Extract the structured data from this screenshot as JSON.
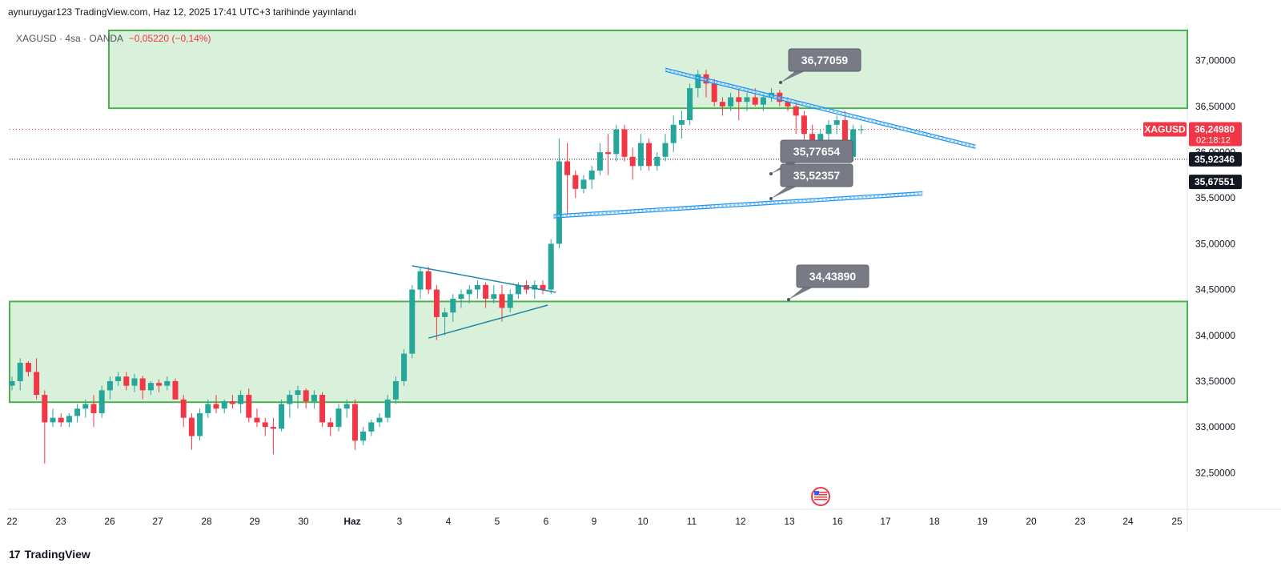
{
  "header": {
    "publish_line": "aynuruygar123 TradingView.com, Haz 12, 2025 17:41 UTC+3 tarihinde yayınlandı"
  },
  "symbol": {
    "name": "XAGUSD · 4sa · OANDA",
    "change": "−0,05220 (−0,14%)"
  },
  "footer": {
    "brand": "TradingView"
  },
  "colors": {
    "up": "#26a69a",
    "down": "#f23645",
    "zone_fill": "#d9f0da",
    "zone_line": "#4caf50",
    "trendline": "#2196f3",
    "callout_bg": "#787b86",
    "grid": "#ffffff"
  },
  "chart_data": {
    "type": "candlestick",
    "symbol": "XAGUSD",
    "timeframe": "4sa",
    "ylim": [
      32.1,
      37.4
    ],
    "y_ticks": [
      "37,00000",
      "36,50000",
      "36,00000",
      "35,50000",
      "35,00000",
      "34,50000",
      "34,00000",
      "33,50000",
      "33,00000",
      "32,50000"
    ],
    "y_tick_values": [
      37.0,
      36.5,
      36.0,
      35.5,
      35.0,
      34.5,
      34.0,
      33.5,
      33.0,
      32.5
    ],
    "x_ticks": [
      "22",
      "23",
      "26",
      "27",
      "28",
      "29",
      "30",
      "Haz",
      "3",
      "4",
      "5",
      "6",
      "9",
      "10",
      "11",
      "12",
      "13",
      "16",
      "17",
      "18",
      "19",
      "20",
      "23",
      "24",
      "25"
    ],
    "price_labels": [
      {
        "text": "36,24980",
        "value": 36.2498,
        "color": "#f23645",
        "sub": "02:18:12"
      },
      {
        "text": "35,92346",
        "value": 35.92346,
        "color": "#131722"
      },
      {
        "text": "35,67551",
        "value": 35.67551,
        "color": "#131722"
      }
    ],
    "symbol_tag": "XAGUSD",
    "zones": [
      {
        "from": 36.48,
        "to": 37.33
      },
      {
        "from": 33.27,
        "to": 34.37
      }
    ],
    "callouts": [
      "36,77059",
      "35,77654",
      "35,52357",
      "34,43890"
    ],
    "callout_values": [
      36.77059,
      35.77654,
      35.52357,
      34.4389
    ],
    "candles": [
      [
        33.45,
        33.55,
        33.4,
        33.5
      ],
      [
        33.5,
        33.75,
        33.4,
        33.7
      ],
      [
        33.7,
        33.72,
        33.55,
        33.6
      ],
      [
        33.6,
        33.75,
        33.3,
        33.35
      ],
      [
        33.35,
        33.4,
        32.6,
        33.05
      ],
      [
        33.05,
        33.2,
        33.0,
        33.1
      ],
      [
        33.1,
        33.15,
        33.0,
        33.05
      ],
      [
        33.05,
        33.15,
        33.0,
        33.12
      ],
      [
        33.12,
        33.25,
        33.05,
        33.2
      ],
      [
        33.2,
        33.3,
        33.1,
        33.25
      ],
      [
        33.25,
        33.35,
        33.0,
        33.15
      ],
      [
        33.15,
        33.45,
        33.1,
        33.4
      ],
      [
        33.4,
        33.55,
        33.3,
        33.5
      ],
      [
        33.5,
        33.6,
        33.45,
        33.55
      ],
      [
        33.55,
        33.6,
        33.4,
        33.45
      ],
      [
        33.45,
        33.58,
        33.38,
        33.53
      ],
      [
        33.53,
        33.56,
        33.3,
        33.4
      ],
      [
        33.4,
        33.5,
        33.35,
        33.48
      ],
      [
        33.48,
        33.52,
        33.38,
        33.45
      ],
      [
        33.45,
        33.55,
        33.4,
        33.5
      ],
      [
        33.5,
        33.53,
        33.3,
        33.3
      ],
      [
        33.3,
        33.35,
        33.0,
        33.1
      ],
      [
        33.1,
        33.15,
        32.75,
        32.9
      ],
      [
        32.9,
        33.2,
        32.85,
        33.15
      ],
      [
        33.15,
        33.3,
        33.1,
        33.25
      ],
      [
        33.25,
        33.35,
        33.15,
        33.2
      ],
      [
        33.2,
        33.3,
        33.15,
        33.28
      ],
      [
        33.28,
        33.35,
        33.2,
        33.25
      ],
      [
        33.25,
        33.4,
        33.15,
        33.35
      ],
      [
        33.35,
        33.42,
        33.05,
        33.1
      ],
      [
        33.1,
        33.2,
        33.0,
        33.05
      ],
      [
        33.05,
        33.1,
        32.9,
        33.0
      ],
      [
        33.0,
        33.1,
        32.7,
        32.98
      ],
      [
        32.98,
        33.3,
        32.95,
        33.25
      ],
      [
        33.25,
        33.4,
        33.1,
        33.35
      ],
      [
        33.35,
        33.45,
        33.2,
        33.4
      ],
      [
        33.4,
        33.42,
        33.2,
        33.28
      ],
      [
        33.28,
        33.4,
        33.2,
        33.35
      ],
      [
        33.35,
        33.38,
        33.0,
        33.05
      ],
      [
        33.05,
        33.1,
        32.9,
        33.0
      ],
      [
        33.0,
        33.25,
        32.95,
        33.2
      ],
      [
        33.2,
        33.3,
        33.1,
        33.25
      ],
      [
        33.25,
        33.3,
        32.75,
        32.85
      ],
      [
        32.85,
        33.0,
        32.8,
        32.95
      ],
      [
        32.95,
        33.08,
        32.9,
        33.05
      ],
      [
        33.05,
        33.15,
        33.0,
        33.1
      ],
      [
        33.1,
        33.35,
        33.05,
        33.3
      ],
      [
        33.3,
        33.55,
        33.25,
        33.5
      ],
      [
        33.5,
        33.85,
        33.45,
        33.8
      ],
      [
        33.8,
        34.55,
        33.75,
        34.5
      ],
      [
        34.5,
        34.75,
        34.4,
        34.7
      ],
      [
        34.7,
        34.75,
        34.45,
        34.5
      ],
      [
        34.5,
        34.55,
        33.95,
        34.2
      ],
      [
        34.2,
        34.3,
        34.0,
        34.25
      ],
      [
        34.25,
        34.45,
        34.15,
        34.4
      ],
      [
        34.4,
        34.5,
        34.3,
        34.45
      ],
      [
        34.45,
        34.55,
        34.35,
        34.5
      ],
      [
        34.5,
        34.6,
        34.4,
        34.55
      ],
      [
        34.55,
        34.58,
        34.3,
        34.4
      ],
      [
        34.4,
        34.55,
        34.35,
        34.45
      ],
      [
        34.45,
        34.55,
        34.15,
        34.3
      ],
      [
        34.3,
        34.5,
        34.25,
        34.45
      ],
      [
        34.45,
        34.58,
        34.4,
        34.55
      ],
      [
        34.55,
        34.6,
        34.45,
        34.5
      ],
      [
        34.5,
        34.6,
        34.4,
        34.55
      ],
      [
        34.55,
        34.6,
        34.45,
        34.5
      ],
      [
        34.5,
        35.05,
        34.45,
        35.0
      ],
      [
        35.0,
        36.15,
        34.95,
        35.9
      ],
      [
        35.9,
        36.1,
        35.3,
        35.75
      ],
      [
        35.75,
        35.8,
        35.5,
        35.6
      ],
      [
        35.6,
        35.75,
        35.55,
        35.7
      ],
      [
        35.7,
        35.85,
        35.6,
        35.8
      ],
      [
        35.8,
        36.1,
        35.75,
        36.0
      ],
      [
        36.0,
        36.2,
        35.75,
        35.98
      ],
      [
        35.98,
        36.3,
        35.9,
        36.25
      ],
      [
        36.25,
        36.3,
        35.9,
        35.95
      ],
      [
        35.95,
        36.05,
        35.7,
        35.85
      ],
      [
        35.85,
        36.2,
        35.8,
        36.1
      ],
      [
        36.1,
        36.15,
        35.8,
        35.85
      ],
      [
        35.85,
        36.0,
        35.8,
        35.95
      ],
      [
        35.95,
        36.2,
        35.9,
        36.1
      ],
      [
        36.1,
        36.4,
        36.0,
        36.3
      ],
      [
        36.3,
        36.45,
        36.15,
        36.35
      ],
      [
        36.35,
        36.75,
        36.3,
        36.7
      ],
      [
        36.7,
        36.9,
        36.6,
        36.85
      ],
      [
        36.85,
        36.9,
        36.6,
        36.75
      ],
      [
        36.75,
        36.8,
        36.5,
        36.55
      ],
      [
        36.55,
        36.6,
        36.4,
        36.5
      ],
      [
        36.5,
        36.65,
        36.45,
        36.6
      ],
      [
        36.6,
        36.7,
        36.35,
        36.55
      ],
      [
        36.55,
        36.65,
        36.45,
        36.6
      ],
      [
        36.6,
        36.7,
        36.5,
        36.52
      ],
      [
        36.52,
        36.65,
        36.45,
        36.6
      ],
      [
        36.6,
        36.7,
        36.55,
        36.65
      ],
      [
        36.65,
        36.68,
        36.5,
        36.55
      ],
      [
        36.55,
        36.6,
        36.45,
        36.5
      ],
      [
        36.5,
        36.55,
        36.2,
        36.4
      ],
      [
        36.4,
        36.45,
        36.1,
        36.2
      ],
      [
        36.2,
        36.3,
        35.95,
        36.05
      ],
      [
        36.05,
        36.25,
        36.0,
        36.2
      ],
      [
        36.2,
        36.35,
        36.1,
        36.3
      ],
      [
        36.3,
        36.4,
        36.2,
        36.35
      ],
      [
        36.35,
        36.45,
        35.9,
        35.95
      ],
      [
        35.95,
        36.3,
        35.9,
        36.25
      ],
      [
        36.25,
        36.3,
        36.2,
        36.25
      ]
    ],
    "trendlines": [
      {
        "name": "desc-upper-1",
        "from": [
          80.0,
          36.9
        ],
        "to": [
          118.0,
          36.06
        ],
        "style": "double"
      },
      {
        "name": "asc-lower",
        "from": [
          66.3,
          35.3
        ],
        "to": [
          111.5,
          35.55
        ],
        "style": "double"
      },
      {
        "name": "small-upper",
        "from": [
          49.0,
          34.76
        ],
        "to": [
          66.6,
          34.47
        ],
        "style": "single"
      },
      {
        "name": "small-lower",
        "from": [
          51.0,
          33.97
        ],
        "to": [
          65.6,
          34.33
        ],
        "style": "single"
      }
    ]
  }
}
